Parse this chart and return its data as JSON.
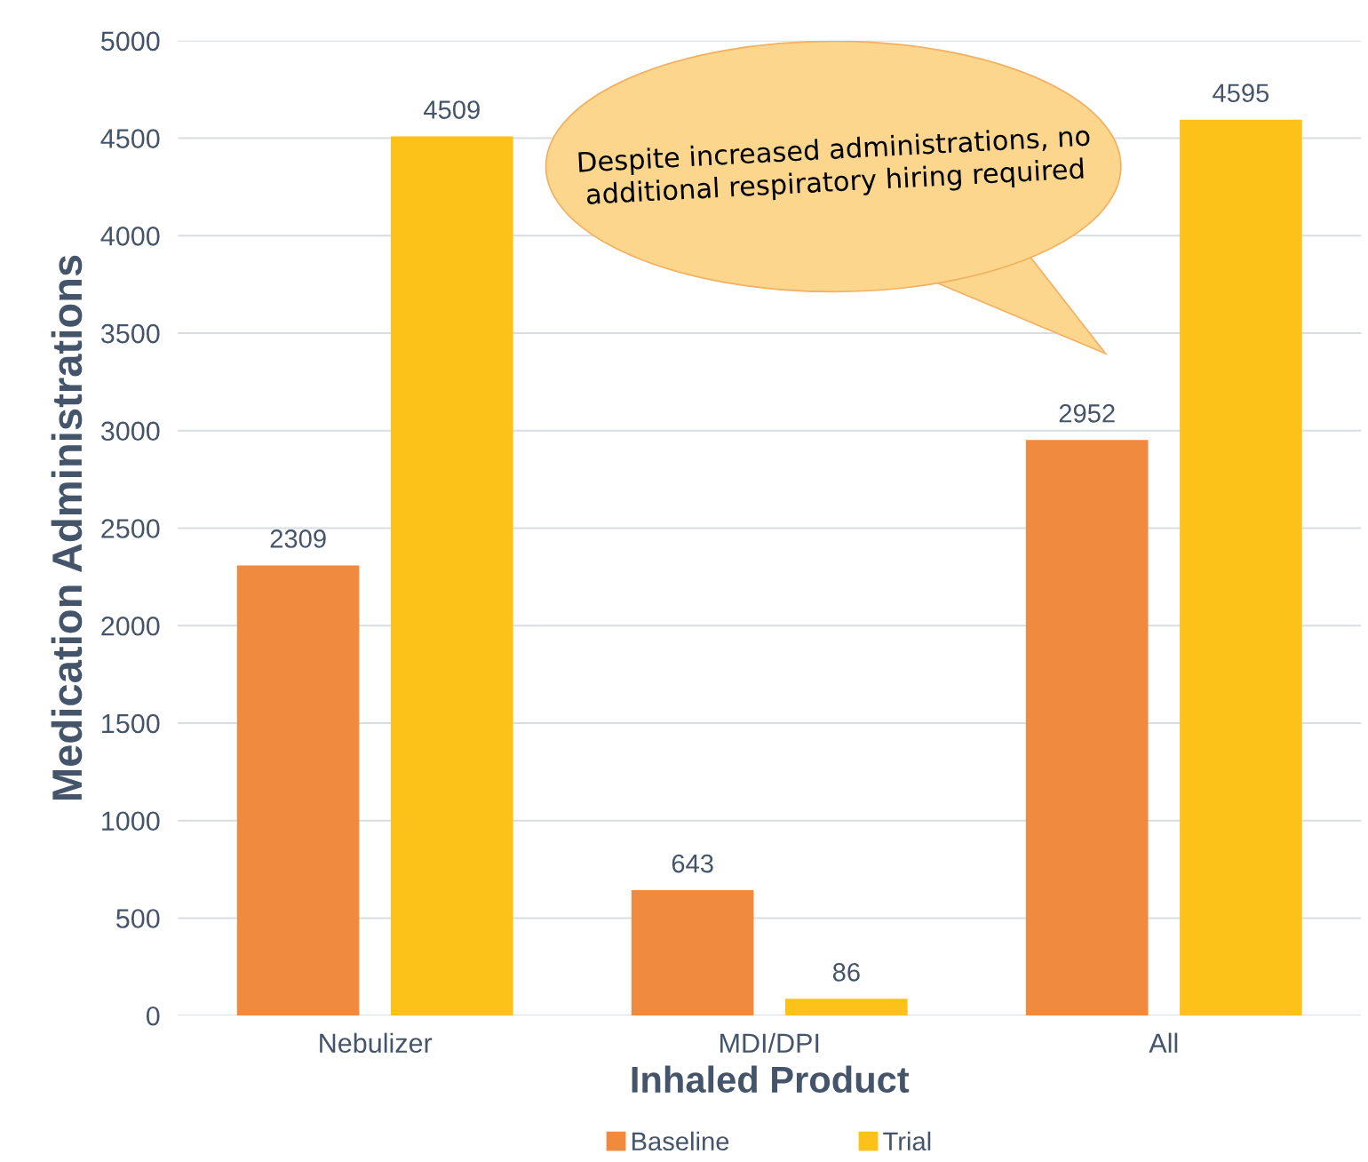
{
  "chart_data": {
    "type": "bar",
    "xlabel": "Inhaled Product",
    "ylabel": "Medication Administrations",
    "categories": [
      "Nebulizer",
      "MDI/DPI",
      "All"
    ],
    "series": [
      {
        "name": "Baseline",
        "color": "#f08a3e",
        "values": [
          2309,
          643,
          2952
        ]
      },
      {
        "name": "Trial",
        "color": "#fcc21a",
        "values": [
          4509,
          86,
          4595
        ]
      }
    ],
    "ylim": [
      0,
      5000
    ],
    "yticks": [
      0,
      500,
      1000,
      1500,
      2000,
      2500,
      3000,
      3500,
      4000,
      4500,
      5000
    ],
    "grid": "y",
    "legend": "bottom",
    "data_labels": true,
    "annotations": [
      "Despite increased administrations, no additional respiratory hiring required"
    ]
  }
}
